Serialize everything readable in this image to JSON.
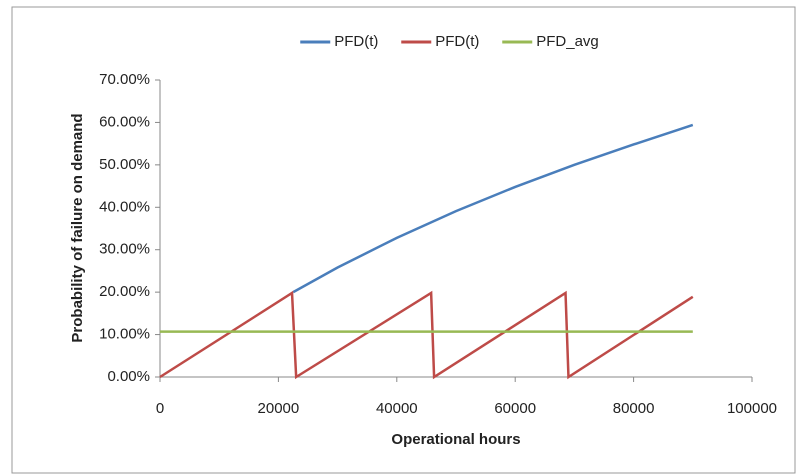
{
  "chart_data": {
    "type": "line",
    "xlabel": "Operational hours",
    "ylabel": "Probability of failure on demand",
    "xlim": [
      0,
      100000
    ],
    "xticks": [
      0,
      20000,
      40000,
      60000,
      80000,
      100000
    ],
    "ylim": [
      0,
      70
    ],
    "yticks": [
      {
        "value": 0,
        "label": "0.00%"
      },
      {
        "value": 10,
        "label": "10.00%"
      },
      {
        "value": 20,
        "label": "20.00%"
      },
      {
        "value": 30,
        "label": "30.00%"
      },
      {
        "value": 40,
        "label": "40.00%"
      },
      {
        "value": 50,
        "label": "50.00%"
      },
      {
        "value": 60,
        "label": "60.00%"
      },
      {
        "value": 70,
        "label": "70.00%"
      }
    ],
    "grid": false,
    "legend": "top",
    "series": [
      {
        "name": "PFD(t)",
        "color": "#4a7ebb",
        "x": [
          22500,
          30000,
          40000,
          50000,
          60000,
          70000,
          80000,
          90000
        ],
        "values": [
          20.0,
          25.8,
          32.8,
          39.1,
          44.8,
          50.0,
          54.8,
          59.4
        ]
      },
      {
        "name": "PFD(t)",
        "color": "#be4b48",
        "x": [
          0,
          22300,
          23000,
          45800,
          46300,
          68500,
          69000,
          90000
        ],
        "values": [
          0,
          19.8,
          0,
          19.8,
          0,
          19.8,
          0,
          18.9
        ]
      },
      {
        "name": "PFD_avg",
        "color": "#98b954",
        "x": [
          0,
          90000
        ],
        "values": [
          10.7,
          10.7
        ]
      }
    ]
  }
}
